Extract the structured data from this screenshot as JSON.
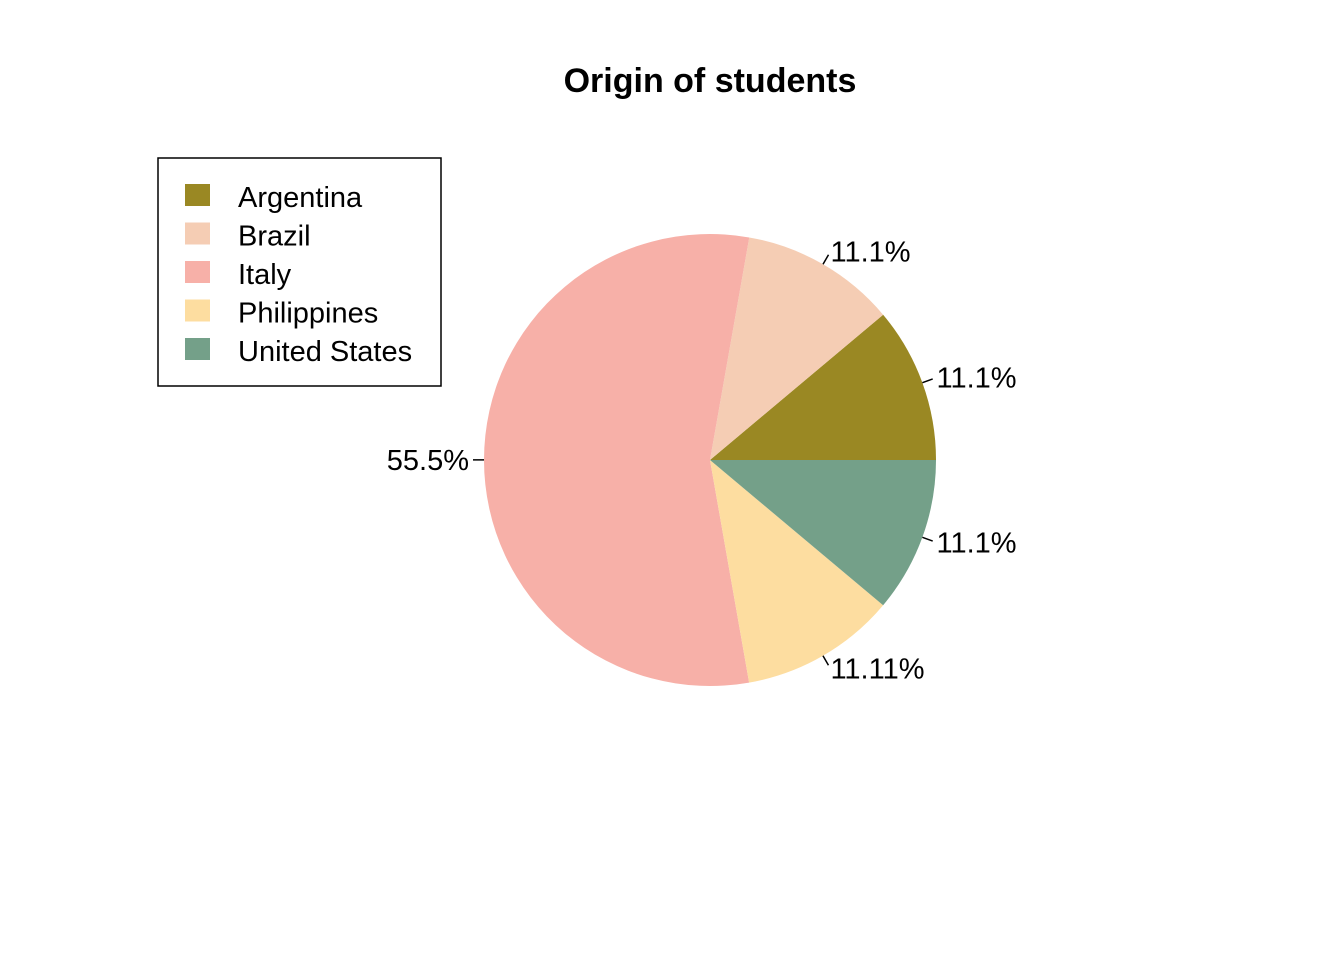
{
  "chart_data": {
    "type": "pie",
    "title": "Origin of students",
    "categories": [
      "Argentina",
      "Brazil",
      "Italy",
      "Philippines",
      "United States"
    ],
    "values": [
      11.1,
      11.1,
      55.5,
      11.11,
      11.1
    ],
    "slice_labels": [
      "11.1%",
      "11.1%",
      "55.5%",
      "11.11%",
      "11.1%"
    ],
    "colors": [
      "#9a8823",
      "#f5cdb4",
      "#f7b0a8",
      "#fddda0",
      "#74a089"
    ],
    "start_angle_deg": 0,
    "direction": "counterclockwise",
    "legend_position": "top-left",
    "legend": [
      "Argentina",
      "Brazil",
      "Italy",
      "Philippines",
      "United States"
    ]
  }
}
